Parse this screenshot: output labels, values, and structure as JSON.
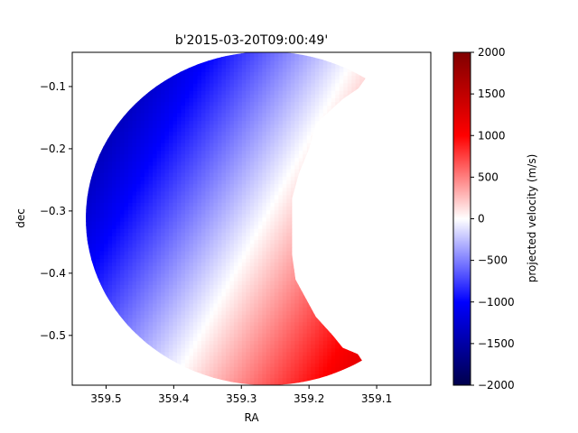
{
  "chart_data": {
    "type": "heatmap",
    "title": "b'2015-03-20T09:00:49'",
    "xlabel": "RA",
    "ylabel": "dec",
    "xlim": [
      359.55,
      359.02
    ],
    "ylim": [
      -0.58,
      -0.045
    ],
    "x_ticks": [
      359.5,
      359.4,
      359.3,
      359.2,
      359.1
    ],
    "x_tick_labels": [
      "359.5",
      "359.4",
      "359.3",
      "359.2",
      "359.1"
    ],
    "y_ticks": [
      -0.1,
      -0.2,
      -0.3,
      -0.4,
      -0.5
    ],
    "y_tick_labels": [
      "−0.1",
      "−0.2",
      "−0.3",
      "−0.4",
      "−0.5"
    ],
    "grid": false,
    "disk": {
      "center_ra": 359.262,
      "center_dec": -0.312,
      "radius_deg": 0.268,
      "limb_outline": [
        [
          359.127,
          -0.103
        ],
        [
          359.15,
          -0.12
        ],
        [
          359.17,
          -0.14
        ],
        [
          359.19,
          -0.16
        ],
        [
          359.2,
          -0.2
        ],
        [
          359.215,
          -0.24
        ],
        [
          359.225,
          -0.28
        ],
        [
          359.225,
          -0.33
        ],
        [
          359.225,
          -0.37
        ],
        [
          359.22,
          -0.41
        ],
        [
          359.205,
          -0.44
        ],
        [
          359.19,
          -0.47
        ],
        [
          359.165,
          -0.5
        ],
        [
          359.15,
          -0.52
        ],
        [
          359.128,
          -0.53
        ]
      ]
    },
    "velocity_field": {
      "zero_line_angle_deg": -27,
      "gradient_m_per_s_per_deg": 5200,
      "max_abs_velocity": 1800
    },
    "colorbar": {
      "label": "projected velocity (m/s)",
      "min": -2000,
      "max": 2000,
      "ticks": [
        2000,
        1500,
        1000,
        500,
        0,
        -500,
        -1000,
        -1500,
        -2000
      ],
      "tick_labels": [
        "2000",
        "1500",
        "1000",
        "500",
        "0",
        "−500",
        "−1000",
        "−1500",
        "−2000"
      ],
      "colormap": "seismic",
      "colors": [
        "#00004c",
        "#0000ff",
        "#ffffff",
        "#ff0000",
        "#800000"
      ]
    }
  }
}
